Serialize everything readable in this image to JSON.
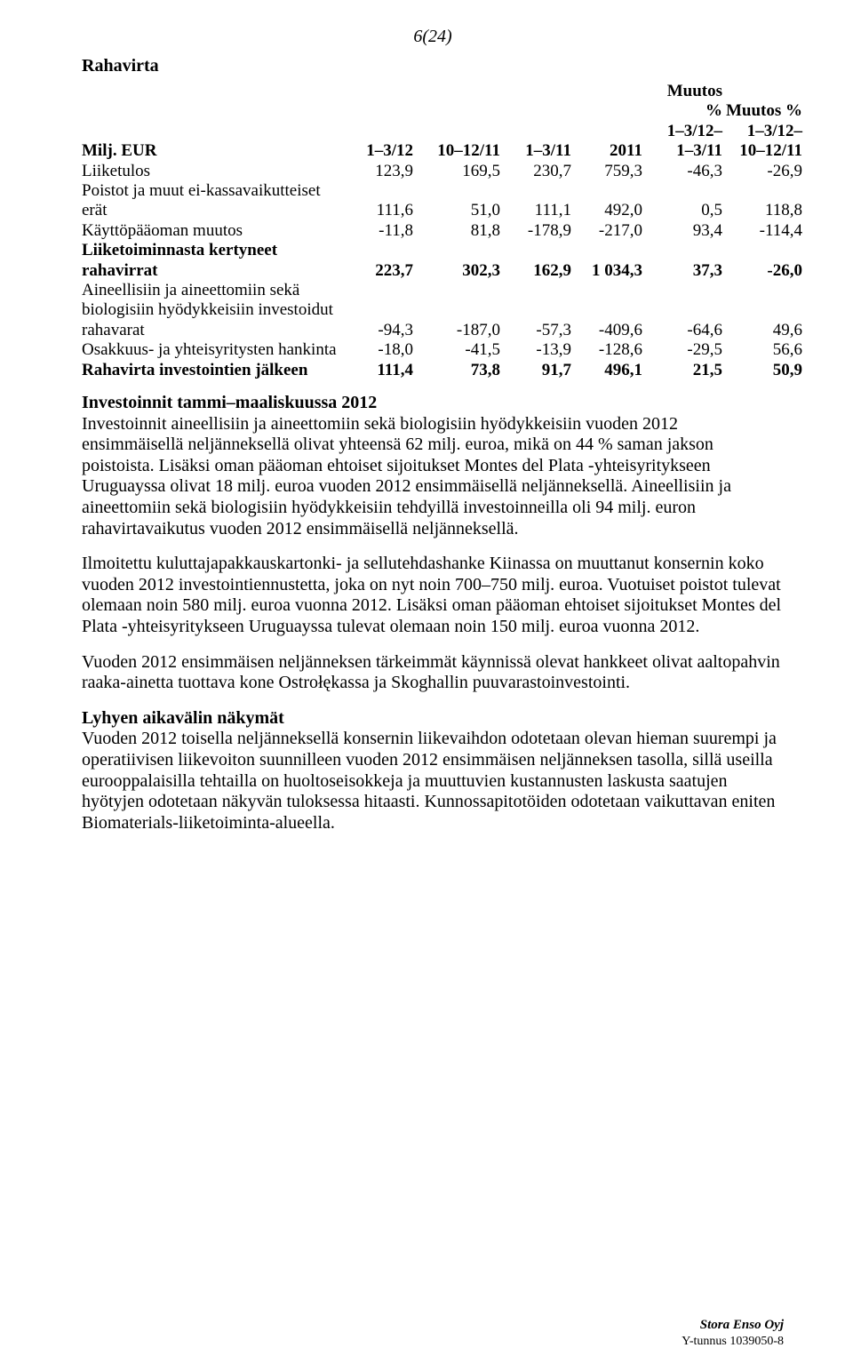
{
  "page_number": "6(24)",
  "section_title": "Rahavirta",
  "table": {
    "header": {
      "rowhead": "Milj. EUR",
      "cols": [
        "1–3/12",
        "10–12/11",
        "1–3/11",
        "2011",
        "Muutos\n%\n1–3/12–\n1–3/11",
        "Muutos %\n1–3/12–\n10–12/11"
      ]
    },
    "rows": [
      {
        "label": "Liiketulos",
        "values": [
          "123,9",
          "169,5",
          "230,7",
          "759,3",
          "-46,3",
          "-26,9"
        ],
        "bold": false
      },
      {
        "label": "Poistot ja muut ei-kassavaikutteiset erät",
        "values": [
          "111,6",
          "51,0",
          "111,1",
          "492,0",
          "0,5",
          "118,8"
        ],
        "bold": false
      },
      {
        "label": "Käyttöpääoman muutos",
        "values": [
          "-11,8",
          "81,8",
          "-178,9",
          "-217,0",
          "93,4",
          "-114,4"
        ],
        "bold": false
      },
      {
        "label": "Liiketoiminnasta kertyneet rahavirrat",
        "values": [
          "223,7",
          "302,3",
          "162,9",
          "1 034,3",
          "37,3",
          "-26,0"
        ],
        "bold": true
      },
      {
        "label": "Aineellisiin ja aineettomiin sekä biologisiin hyödykkeisiin investoidut rahavarat",
        "values": [
          "-94,3",
          "-187,0",
          "-57,3",
          "-409,6",
          "-64,6",
          "49,6"
        ],
        "bold": false
      },
      {
        "label": "Osakkuus- ja yhteisyritysten hankinta",
        "values": [
          "-18,0",
          "-41,5",
          "-13,9",
          "-128,6",
          "-29,5",
          "56,6"
        ],
        "bold": false
      },
      {
        "label": "Rahavirta investointien jälkeen",
        "values": [
          "111,4",
          "73,8",
          "91,7",
          "496,1",
          "21,5",
          "50,9"
        ],
        "bold": true
      }
    ]
  },
  "investments_heading": "Investoinnit tammi–maaliskuussa 2012",
  "para1": "Investoinnit aineellisiin ja aineettomiin sekä biologisiin hyödykkeisiin vuoden 2012 ensimmäisellä neljänneksellä olivat yhteensä 62 milj. euroa, mikä on 44 % saman jakson poistoista. Lisäksi oman pääoman ehtoiset sijoitukset Montes del Plata -yhteisyritykseen Uruguayssa olivat 18 milj. euroa vuoden 2012 ensimmäisellä neljänneksellä. Aineellisiin ja aineettomiin sekä biologisiin hyödykkeisiin tehdyillä investoinneilla oli 94 milj. euron rahavirtavaikutus vuoden 2012 ensimmäisellä neljänneksellä.",
  "para2": "Ilmoitettu kuluttajapakkauskartonki- ja sellutehdashanke Kiinassa on muuttanut konsernin koko vuoden 2012 investointiennustetta, joka on nyt noin 700–750 milj. euroa. Vuotuiset poistot tulevat olemaan noin 580 milj. euroa vuonna 2012. Lisäksi oman pääoman ehtoiset sijoitukset Montes del Plata -yhteisyritykseen Uruguayssa tulevat olemaan noin 150 milj. euroa vuonna 2012.",
  "para3": "Vuoden 2012 ensimmäisen neljänneksen tärkeimmät käynnissä olevat hankkeet olivat aaltopahvin raaka-ainetta tuottava kone Ostrołękassa ja Skoghallin puuvarastoinvestointi.",
  "outlook_heading": "Lyhyen aikavälin näkymät",
  "para4": "Vuoden 2012 toisella neljänneksellä konsernin liikevaihdon odotetaan olevan hieman suurempi ja operatiivisen liikevoiton suunnilleen vuoden 2012 ensimmäisen neljänneksen tasolla, sillä useilla eurooppalaisilla tehtailla on huoltoseisokkeja ja muuttuvien kustannusten laskusta saatujen hyötyjen odotetaan näkyvän tuloksessa hitaasti. Kunnossapitotöiden odotetaan vaikuttavan eniten Biomaterials-liiketoiminta-alueella.",
  "footer": {
    "company": "Stora Enso Oyj",
    "id": "Y-tunnus 1039050-8"
  }
}
